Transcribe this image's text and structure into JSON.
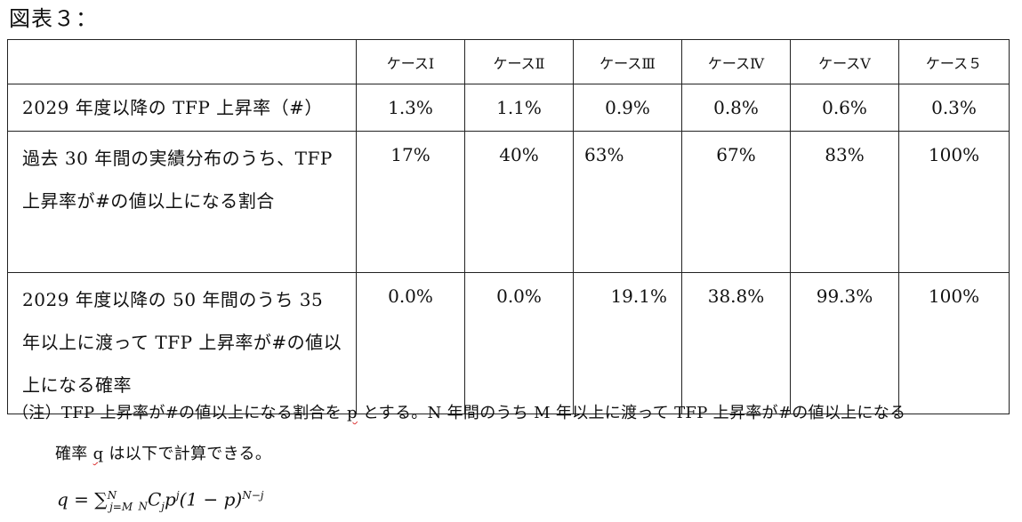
{
  "title": "図表３：",
  "table": {
    "headers": [
      "",
      "ケースⅠ",
      "ケースⅡ",
      "ケースⅢ",
      "ケースⅣ",
      "ケースⅤ",
      "ケース５"
    ],
    "rows": [
      {
        "label": "2029 年度以降の TFP 上昇率（#）",
        "values": [
          "1.3%",
          "1.1%",
          "0.9%",
          "0.8%",
          "0.6%",
          "0.3%"
        ]
      },
      {
        "label": "過去 30 年間の実績分布のうち、TFP 上昇率が#の値以上になる割合",
        "values": [
          "17%",
          "40%",
          "63%",
          "67%",
          "83%",
          "100%"
        ]
      },
      {
        "label": "2029 年度以降の 50 年間のうち 35 年以上に渡って TFP 上昇率が#の値以上になる確率",
        "values": [
          "0.0%",
          "0.0%",
          "19.1%",
          "38.8%",
          "99.3%",
          "100%"
        ]
      }
    ]
  },
  "note": {
    "line1_a": "（注）TFP 上昇率が#の値以上になる割合を ",
    "line1_p": "p",
    "line1_b": " とする。N 年間のうち M 年以上に渡って TFP 上昇率が#の値以上になる",
    "line2_a": "確率 ",
    "line2_q": "q",
    "line2_b": " は以下で計算できる。"
  },
  "formula": {
    "lhs": "q = ∑",
    "sub": "j=M",
    "sup": "N",
    "rest1": " ",
    "c_sub": "N",
    "c": "C",
    "c_j": "j",
    "p": "p",
    "p_sup": "j",
    "paren": "(1 − p)",
    "paren_sup": "N−j"
  }
}
